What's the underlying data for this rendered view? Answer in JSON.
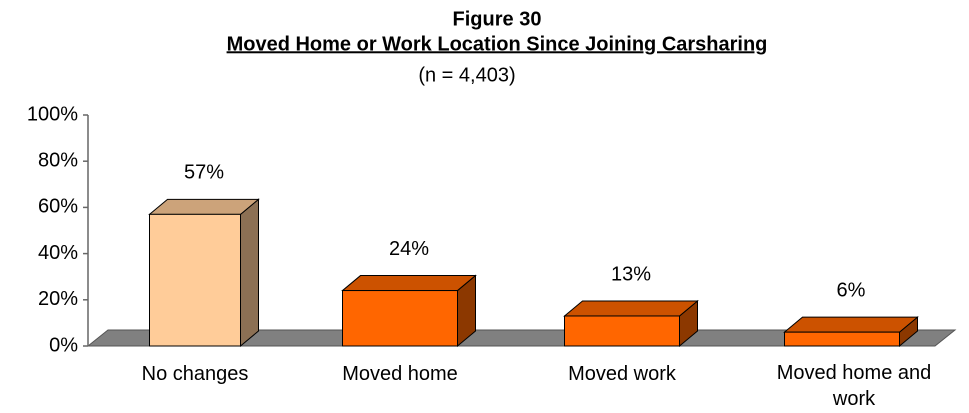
{
  "chart_data": {
    "type": "bar3d",
    "title": "Figure 30",
    "subtitle": "Moved Home or Work Location Since Joining Carsharing",
    "note": "(n = 4,403)",
    "categories": [
      "No changes",
      "Moved home",
      "Moved work",
      "Moved home and work"
    ],
    "values": [
      57,
      24,
      13,
      6
    ],
    "value_labels": [
      "57%",
      "24%",
      "13%",
      "6%"
    ],
    "colors": [
      "#ffcc99",
      "#ff6600",
      "#ff6600",
      "#ff6600"
    ],
    "floor_color": "#808080",
    "ylim": [
      0,
      100
    ],
    "yticks": [
      {
        "value": 0,
        "label": "0%"
      },
      {
        "value": 20,
        "label": "20%"
      },
      {
        "value": 40,
        "label": "40%"
      },
      {
        "value": 60,
        "label": "60%"
      },
      {
        "value": 80,
        "label": "80%"
      },
      {
        "value": 100,
        "label": "100%"
      }
    ]
  }
}
